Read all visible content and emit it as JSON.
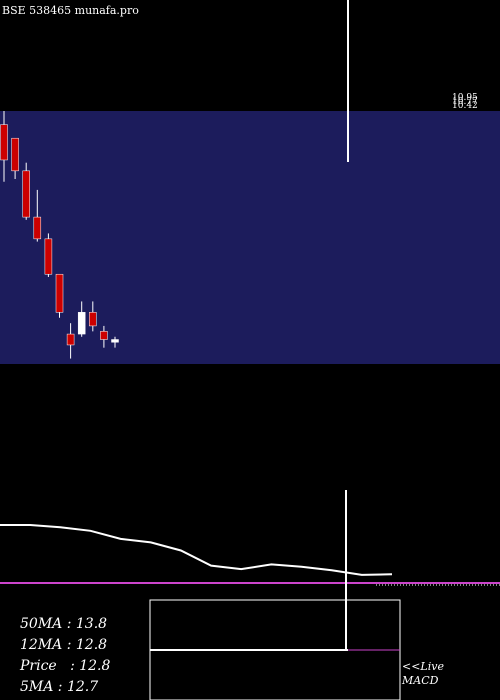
{
  "header": {
    "site_label": "BSE 538465 munafa.pro"
  },
  "price_tags": [
    "10.95",
    "10.77",
    "10.42"
  ],
  "stats": {
    "ma50": "50MA : 13.8",
    "ma12": "12MA : 12.8",
    "price": "Price   : 12.8",
    "ma5": "5MA : 12.7"
  },
  "live": {
    "line1": "<<Live",
    "line2": "MACD"
  },
  "colors": {
    "background": "#000000",
    "price_band": "#1c1c5c",
    "bear": "#cc0000",
    "bull": "#ffffff",
    "signal": "#cc44cc"
  },
  "chart_data": {
    "type": "candlestick",
    "candles": [
      {
        "open": 15.3,
        "high": 15.8,
        "low": 13.2,
        "close": 14.0
      },
      {
        "open": 14.8,
        "high": 14.8,
        "low": 13.3,
        "close": 13.6
      },
      {
        "open": 13.6,
        "high": 13.9,
        "low": 11.8,
        "close": 11.9
      },
      {
        "open": 11.9,
        "high": 12.9,
        "low": 11.0,
        "close": 11.1
      },
      {
        "open": 11.1,
        "high": 11.3,
        "low": 9.7,
        "close": 9.8
      },
      {
        "open": 9.8,
        "high": 9.8,
        "low": 8.2,
        "close": 8.4
      },
      {
        "open": 7.6,
        "high": 8.0,
        "low": 6.7,
        "close": 7.2
      },
      {
        "open": 7.6,
        "high": 8.8,
        "low": 7.5,
        "close": 8.4
      },
      {
        "open": 8.4,
        "high": 8.8,
        "low": 7.7,
        "close": 7.9
      },
      {
        "open": 7.7,
        "high": 7.9,
        "low": 7.1,
        "close": 7.4
      },
      {
        "open": 7.3,
        "high": 7.5,
        "low": 7.1,
        "close": 7.4
      }
    ],
    "price_range": [
      6.5,
      15.8
    ],
    "ma_line": [
      10.0,
      10.0,
      9.6,
      9.0,
      7.6,
      7.0,
      5.6,
      3.0,
      2.4,
      3.2,
      2.8,
      2.2,
      1.4,
      1.5
    ],
    "ma_range": [
      0,
      10
    ],
    "signal_value": 0
  }
}
